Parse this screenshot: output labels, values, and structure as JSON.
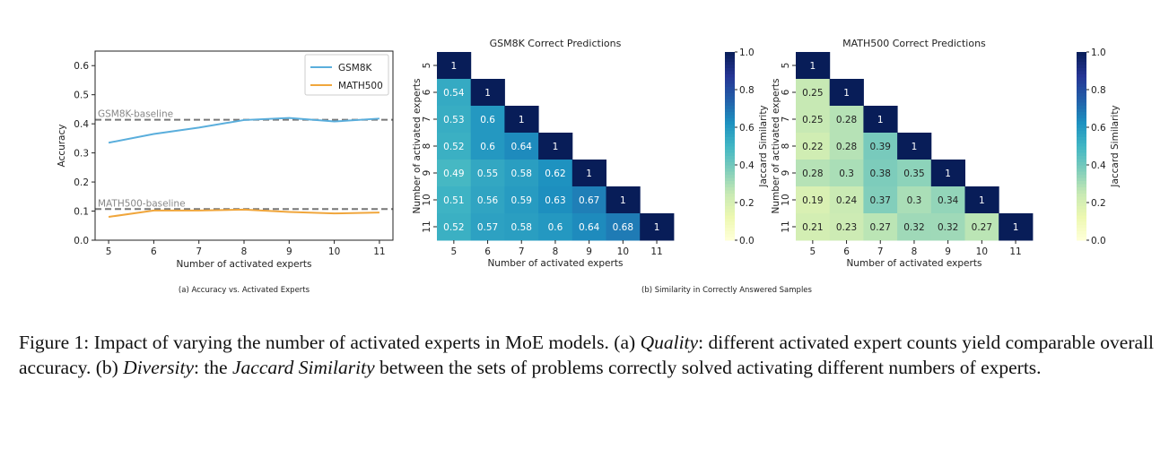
{
  "chart_data": [
    {
      "type": "line",
      "xlabel": "Number of activated experts",
      "ylabel": "Accuracy",
      "subcaption": "(a) Accuracy vs. Activated Experts",
      "x": [
        5,
        6,
        7,
        8,
        9,
        10,
        11
      ],
      "xlim": [
        4.7,
        11.3
      ],
      "ylim": [
        0,
        0.65
      ],
      "yticks": [
        0.0,
        0.1,
        0.2,
        0.3,
        0.4,
        0.5,
        0.6
      ],
      "legend": "top-right",
      "grid": false,
      "series": [
        {
          "name": "GSM8K",
          "color": "#5aaedc",
          "values": [
            0.335,
            0.365,
            0.387,
            0.413,
            0.42,
            0.408,
            0.418
          ]
        },
        {
          "name": "MATH500",
          "color": "#f0a63c",
          "values": [
            0.08,
            0.102,
            0.102,
            0.105,
            0.097,
            0.092,
            0.095
          ]
        }
      ],
      "baselines": [
        {
          "label": "GSM8K-baseline",
          "value": 0.414
        },
        {
          "label": "MATH500-baseline",
          "value": 0.107
        }
      ]
    },
    {
      "type": "heatmap",
      "title": "GSM8K Correct Predictions",
      "xlabel": "Number of activated experts",
      "ylabel": "Number of activated experts",
      "colorbar_label": "Jaccard Similarity",
      "colormap": "YlGnBu",
      "vmin": 0,
      "vmax": 1,
      "categories": [
        5,
        6,
        7,
        8,
        9,
        10,
        11
      ],
      "values": [
        [
          1
        ],
        [
          0.54,
          1
        ],
        [
          0.53,
          0.6,
          1
        ],
        [
          0.52,
          0.6,
          0.64,
          1
        ],
        [
          0.49,
          0.55,
          0.58,
          0.62,
          1
        ],
        [
          0.51,
          0.56,
          0.59,
          0.63,
          0.67,
          1
        ],
        [
          0.52,
          0.57,
          0.58,
          0.6,
          0.64,
          0.68,
          1
        ]
      ]
    },
    {
      "type": "heatmap",
      "title": "MATH500 Correct Predictions",
      "xlabel": "Number of activated experts",
      "ylabel": "Number of activated experts",
      "colorbar_label": "Jaccard Similarity",
      "colormap": "YlGnBu",
      "vmin": 0,
      "vmax": 1,
      "categories": [
        5,
        6,
        7,
        8,
        9,
        10,
        11
      ],
      "values": [
        [
          1
        ],
        [
          0.25,
          1
        ],
        [
          0.25,
          0.28,
          1
        ],
        [
          0.22,
          0.28,
          0.39,
          1
        ],
        [
          0.28,
          0.3,
          0.38,
          0.35,
          1
        ],
        [
          0.19,
          0.24,
          0.37,
          0.3,
          0.34,
          1
        ],
        [
          0.21,
          0.23,
          0.27,
          0.32,
          0.32,
          0.27,
          1
        ]
      ]
    }
  ],
  "colorbar_ticks": [
    "0.0",
    "0.2",
    "0.4",
    "0.6",
    "0.8",
    "1.0"
  ],
  "subcaption_b": "(b) Similarity in Correctly Answered Samples",
  "caption": {
    "label": "Figure 1: Impact of varying the number of activated experts in MoE models. (a) ",
    "quality": "Quality",
    "part2": ": different activated expert counts yield comparable overall accuracy. (b) ",
    "diversity": "Diversity",
    "part3": ": the ",
    "jaccard": "Jaccard Similarity",
    "part4": " between the sets of problems correctly solved activating different numbers of experts."
  }
}
